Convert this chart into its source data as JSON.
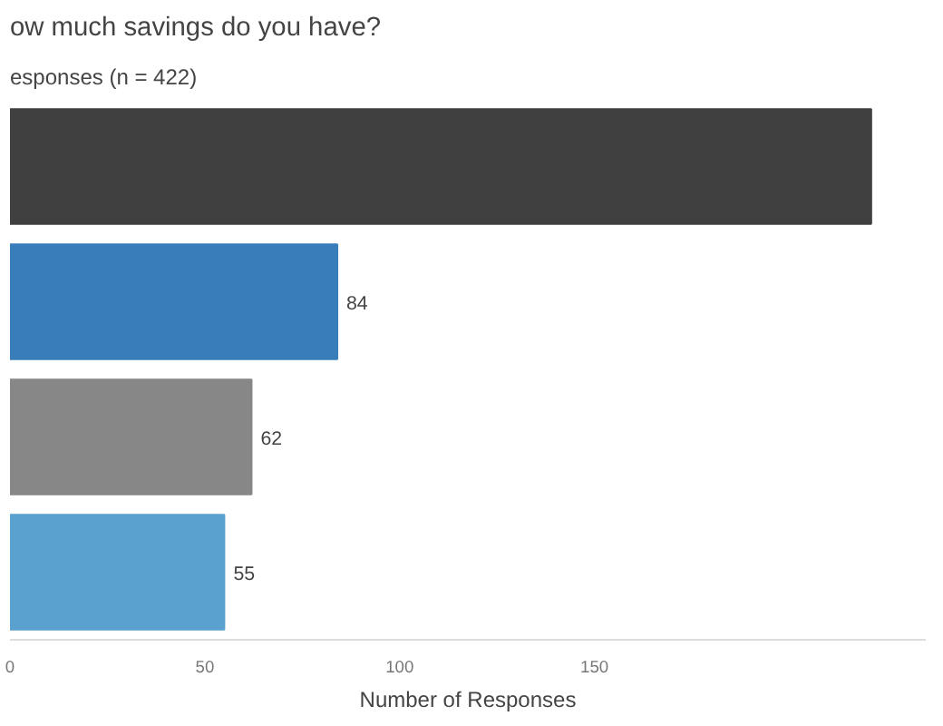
{
  "chart_data": {
    "type": "bar",
    "orientation": "horizontal",
    "title": "ow much savings do you have?",
    "subtitle": "esponses (n = 422)",
    "xlabel": "Number of Responses",
    "categories": [
      null,
      null,
      null,
      null
    ],
    "values": [
      221,
      84,
      62,
      55
    ],
    "colors": [
      "#404040",
      "#3a7dbb",
      "#878787",
      "#5ba1cf"
    ],
    "value_labels": [
      null,
      "84",
      "62",
      "55"
    ],
    "xlim": [
      0,
      235
    ],
    "xticks": [
      0,
      50,
      100,
      150
    ],
    "grid": false
  }
}
